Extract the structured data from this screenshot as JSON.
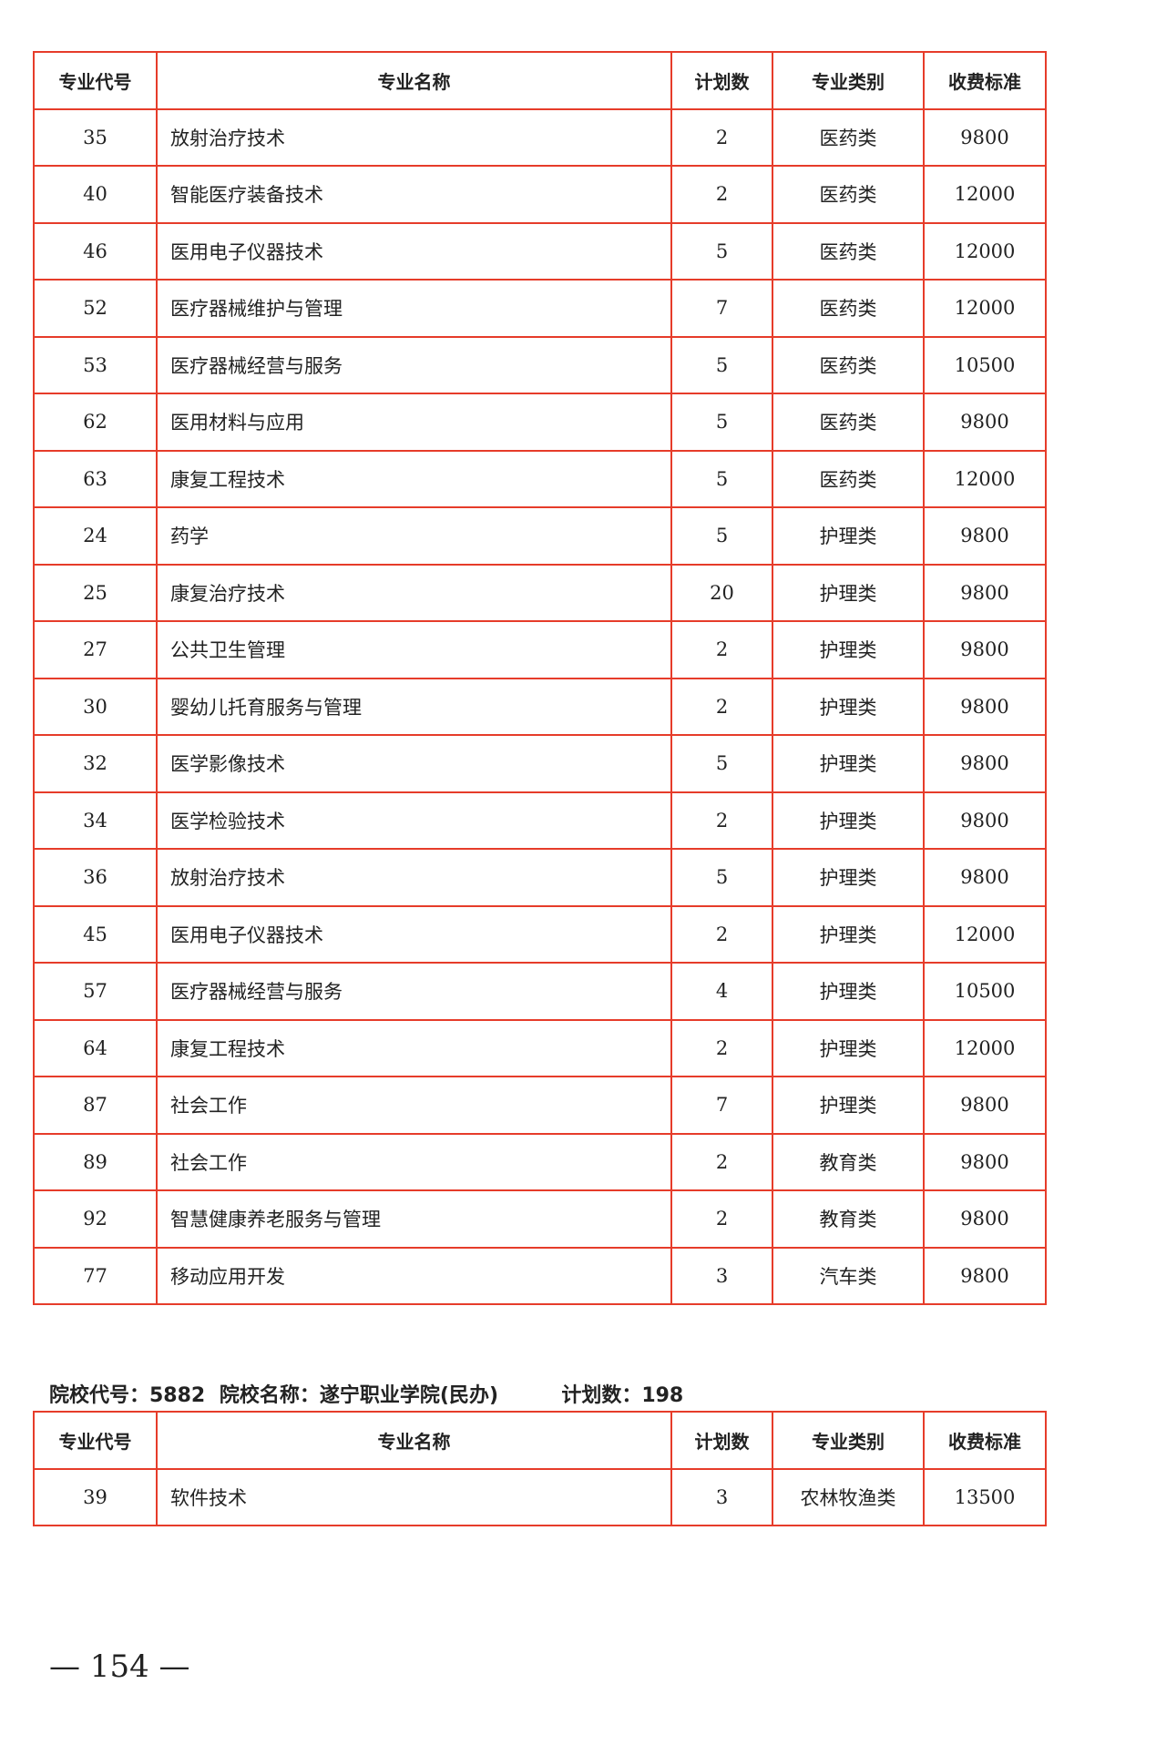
{
  "headers": [
    "专业代号",
    "专业名称",
    "计划数",
    "专业类别",
    "收费标准"
  ],
  "rows": [
    [
      "35",
      "放射治疗技术",
      "2",
      "医药类",
      "9800"
    ],
    [
      "40",
      "智能医疗装备技术",
      "2",
      "医药类",
      "12000"
    ],
    [
      "46",
      "医用电子仪器技术",
      "5",
      "医药类",
      "12000"
    ],
    [
      "52",
      "医疗器械维护与管理",
      "7",
      "医药类",
      "12000"
    ],
    [
      "53",
      "医疗器械经营与服务",
      "5",
      "医药类",
      "10500"
    ],
    [
      "62",
      "医用材料与应用",
      "5",
      "医药类",
      "9800"
    ],
    [
      "63",
      "康复工程技术",
      "5",
      "医药类",
      "12000"
    ],
    [
      "24",
      "药学",
      "5",
      "护理类",
      "9800"
    ],
    [
      "25",
      "康复治疗技术",
      "20",
      "护理类",
      "9800"
    ],
    [
      "27",
      "公共卫生管理",
      "2",
      "护理类",
      "9800"
    ],
    [
      "30",
      "婴幼儿托育服务与管理",
      "2",
      "护理类",
      "9800"
    ],
    [
      "32",
      "医学影像技术",
      "5",
      "护理类",
      "9800"
    ],
    [
      "34",
      "医学检验技术",
      "2",
      "护理类",
      "9800"
    ],
    [
      "36",
      "放射治疗技术",
      "5",
      "护理类",
      "9800"
    ],
    [
      "45",
      "医用电子仪器技术",
      "2",
      "护理类",
      "12000"
    ],
    [
      "57",
      "医疗器械经营与服务",
      "4",
      "护理类",
      "10500"
    ],
    [
      "64",
      "康复工程技术",
      "2",
      "护理类",
      "12000"
    ],
    [
      "87",
      "社会工作",
      "7",
      "护理类",
      "9800"
    ],
    [
      "89",
      "社会工作",
      "2",
      "教育类",
      "9800"
    ],
    [
      "92",
      "智慧健康养老服务与管理",
      "2",
      "教育类",
      "9800"
    ],
    [
      "77",
      "移动应用开发",
      "3",
      "汽车类",
      "9800"
    ]
  ],
  "section": {
    "code": "院校代号：5882",
    "name": "院校名称：遂宁职业学院(民办)",
    "plan": "计划数：198"
  },
  "rows2": [
    [
      "39",
      "软件技术",
      "3",
      "农林牧渔类",
      "13500"
    ]
  ],
  "page_number": "— 154 —"
}
